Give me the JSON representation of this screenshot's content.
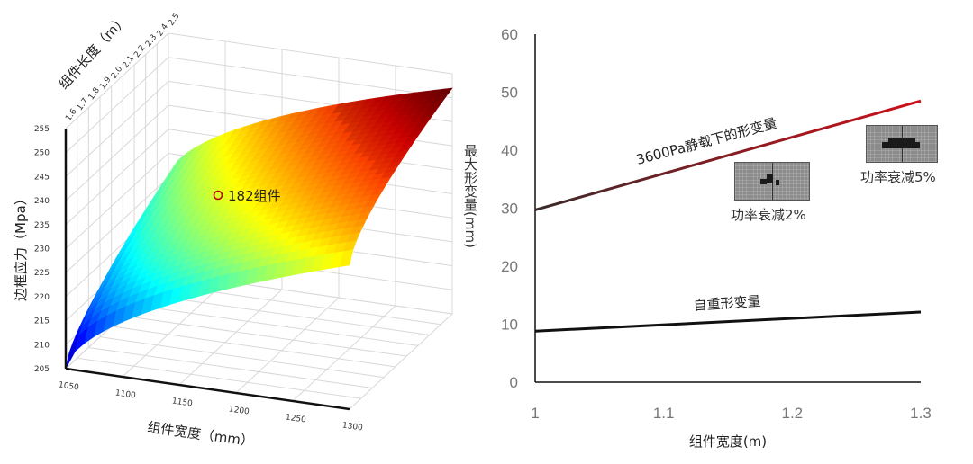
{
  "chart_data": [
    {
      "type": "surface",
      "x_axis": {
        "label": "组件宽度（mm）",
        "range": [
          1050,
          1300
        ],
        "ticks": [
          "1050",
          "1100",
          "1150",
          "1200",
          "1250",
          "1300"
        ]
      },
      "y_axis": {
        "label": "组件长度（m）",
        "range": [
          1.6,
          2.5
        ],
        "ticks": [
          "1.6",
          "1.7",
          "1.8",
          "1.9",
          "2.0",
          "2.1",
          "2.2",
          "2.3",
          "2.4",
          "2.5"
        ]
      },
      "z_axis": {
        "label": "边框应力（Mpa）",
        "range": [
          205,
          255
        ],
        "ticks": [
          "205",
          "210",
          "215",
          "220",
          "225",
          "230",
          "235",
          "240",
          "245",
          "250",
          "255"
        ]
      },
      "colormap": "jet",
      "grid": true,
      "annotation": {
        "text": "182组件",
        "marker_color": "#c00000"
      }
    },
    {
      "type": "line",
      "xlabel": "组件宽度(m)",
      "ylabel": "最大形变量(mm)",
      "xlim": [
        1,
        1.3
      ],
      "ylim": [
        0,
        60
      ],
      "x_ticks": [
        "1",
        "1.1",
        "1.2",
        "1.3"
      ],
      "y_ticks": [
        "0",
        "10",
        "20",
        "30",
        "40",
        "50",
        "60"
      ],
      "grid": false,
      "series": [
        {
          "name": "3600Pa静载下的形变量",
          "x": [
            1,
            1.3
          ],
          "y": [
            29.7,
            48.5
          ],
          "color_start": "#3a2a2a",
          "color_end": "#d0101a"
        },
        {
          "name": "自重形变量",
          "x": [
            1,
            1.3
          ],
          "y": [
            8.8,
            12.1
          ],
          "color": "#111111"
        }
      ],
      "annotations": [
        {
          "text": "功率衰减2%"
        },
        {
          "text": "功率衰减5%"
        }
      ]
    }
  ]
}
